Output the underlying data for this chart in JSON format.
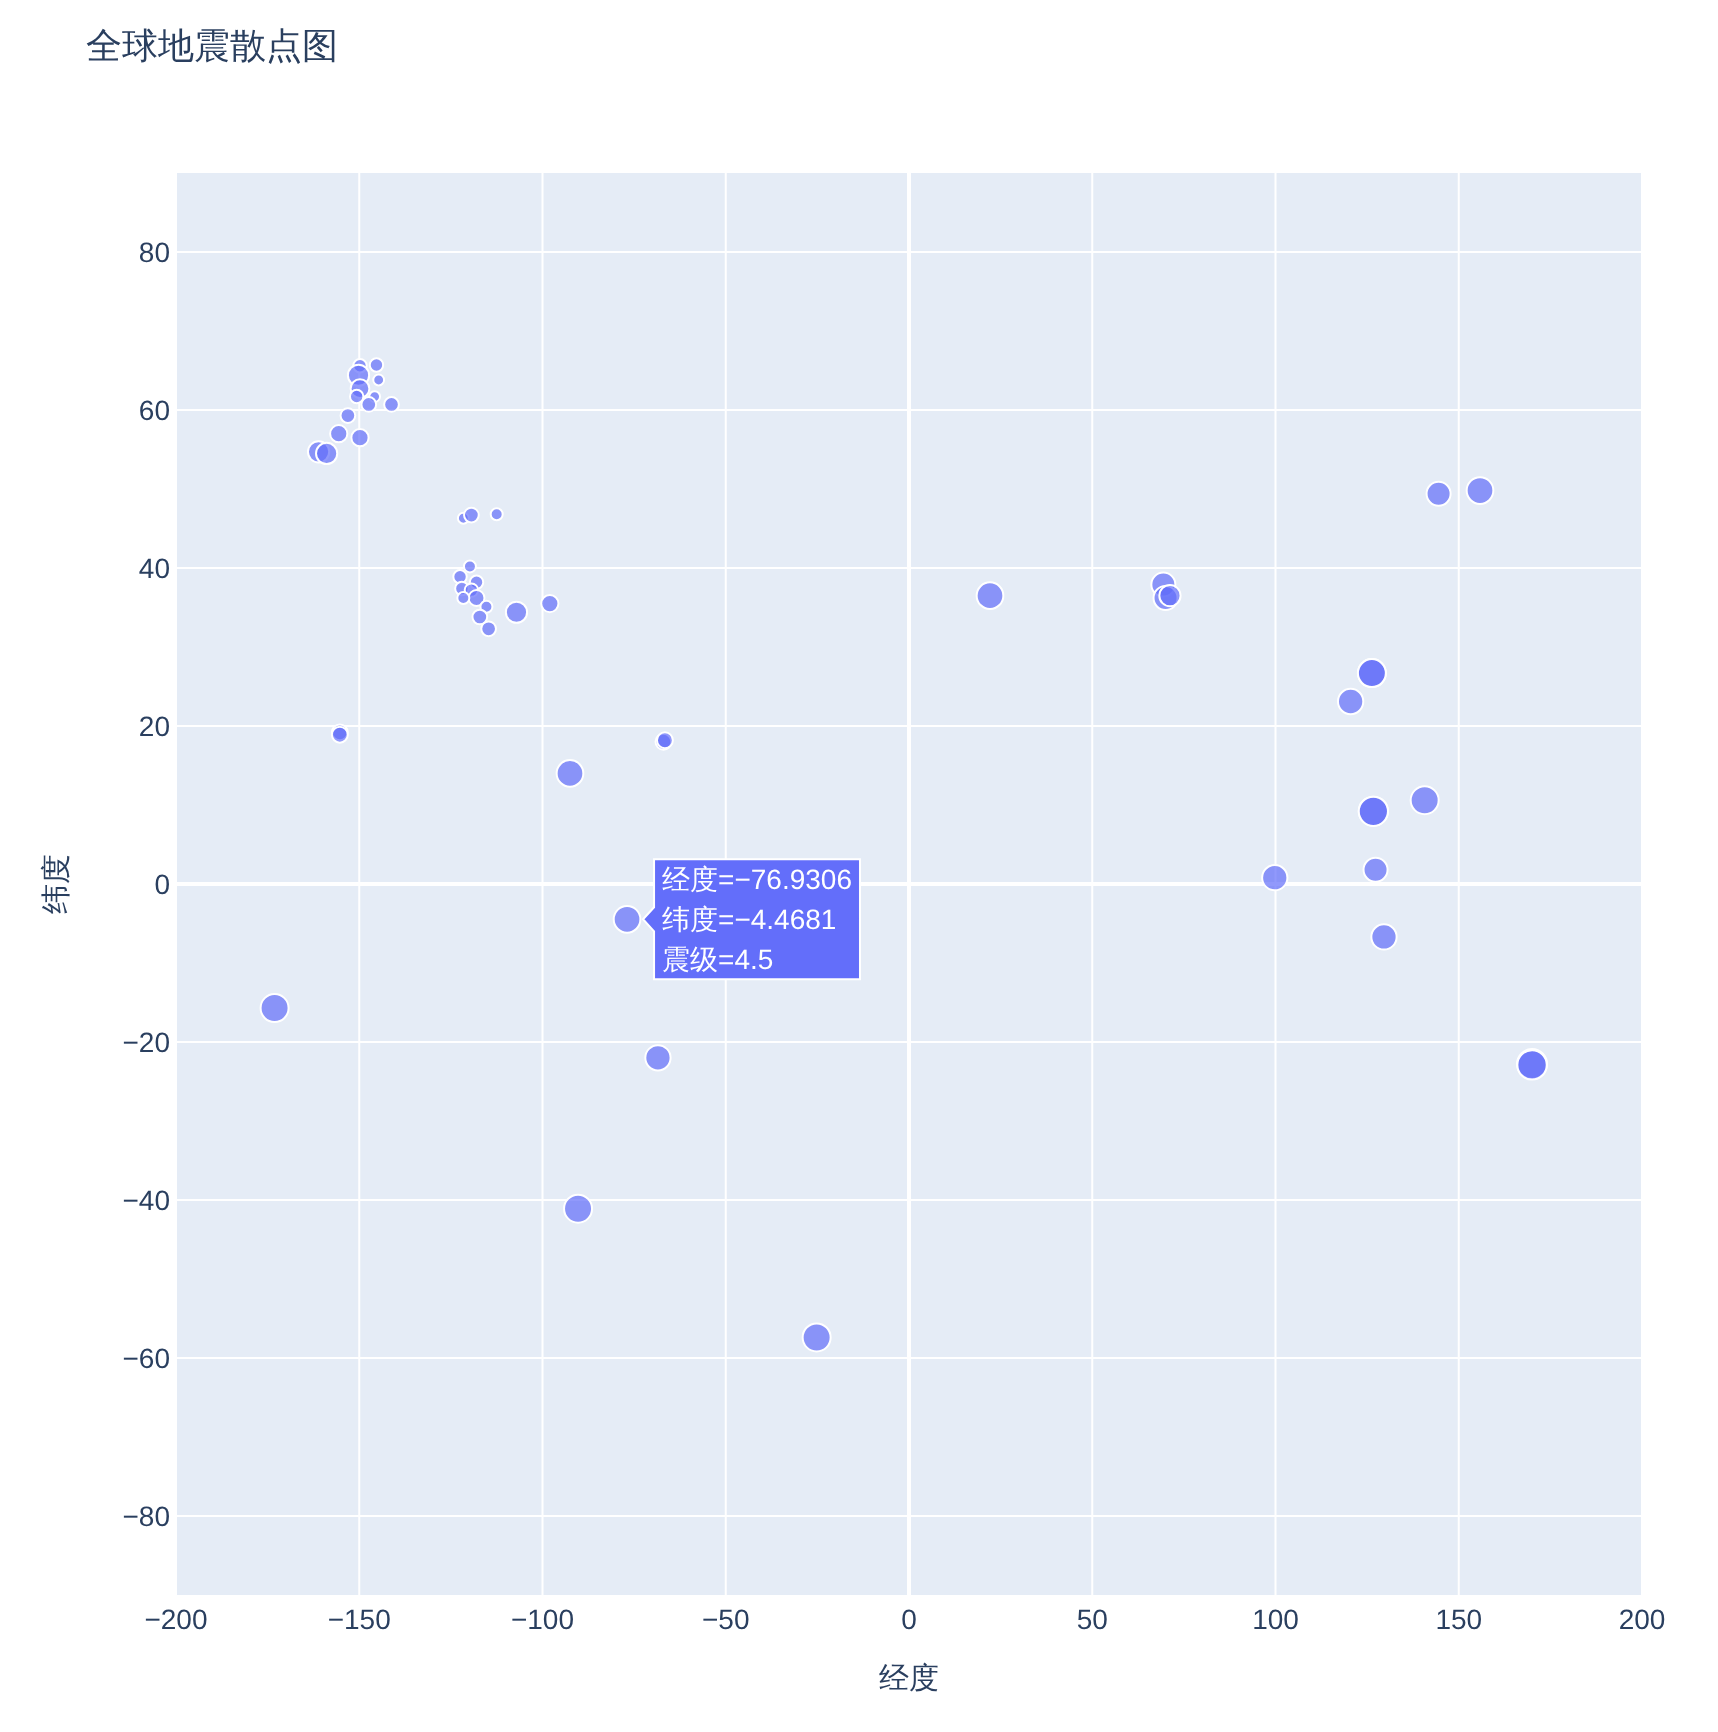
{
  "chart_data": {
    "type": "bubble",
    "title": "全球地震散点图",
    "xlabel": "经度",
    "ylabel": "纬度",
    "xlim": [
      -200,
      200
    ],
    "ylim": [
      -90,
      90
    ],
    "xticks": [
      {
        "value": -200,
        "label": "−200"
      },
      {
        "value": -150,
        "label": "−150"
      },
      {
        "value": -100,
        "label": "−100"
      },
      {
        "value": -50,
        "label": "−50"
      },
      0,
      50,
      100,
      150,
      200
    ],
    "yticks": [
      {
        "value": -80,
        "label": "−80"
      },
      {
        "value": -60,
        "label": "−60"
      },
      {
        "value": -40,
        "label": "−40"
      },
      {
        "value": -20,
        "label": "−20"
      },
      0,
      20,
      40,
      60,
      80
    ],
    "grid": true,
    "marker": "circle",
    "series": [
      {
        "color": "#636efa",
        "x": [
          -149.8,
          -145.3,
          -150.2,
          -144.7,
          -149.8,
          -145.8,
          -150.7,
          -147.4,
          -141.2,
          -153.1,
          -155.6,
          -149.8,
          -161.1,
          -158.9,
          -121.6,
          -119.4,
          -112.5,
          -119.8,
          -122.5,
          -118.0,
          -122.0,
          -119.4,
          -118.0,
          -121.6,
          -115.3,
          -117.1,
          -114.7,
          -107.1,
          -98.0,
          -155.3,
          -155.3,
          -67.0,
          -66.6,
          -92.5,
          -76.9306,
          -173.1,
          -68.5,
          -90.3,
          -25.2,
          22.1,
          144.5,
          155.8,
          69.4,
          70.0,
          71.2,
          126.3,
          126.3,
          120.5,
          140.7,
          126.7,
          126.7,
          99.8,
          127.3,
          129.6,
          170.0,
          170.0
        ],
        "values": [
          65.6,
          65.7,
          64.4,
          63.8,
          62.7,
          61.7,
          61.7,
          60.7,
          60.7,
          59.3,
          57.0,
          56.5,
          54.7,
          54.5,
          46.3,
          46.7,
          46.8,
          40.2,
          38.9,
          38.2,
          37.4,
          37.2,
          36.2,
          36.2,
          35.1,
          33.8,
          32.3,
          34.4,
          35.5,
          19.2,
          18.9,
          18.0,
          18.2,
          14.0,
          -4.4681,
          -15.7,
          -22.0,
          -41.1,
          -57.4,
          36.5,
          49.4,
          49.8,
          37.9,
          36.2,
          36.5,
          26.7,
          26.7,
          23.1,
          10.6,
          9.2,
          9.2,
          0.8,
          1.8,
          -6.7,
          -22.8,
          -22.9
        ],
        "sizes": [
          0.2,
          0.2,
          0.5,
          0.13,
          0.39,
          0.13,
          0.2,
          0.24,
          0.24,
          0.24,
          0.33,
          0.33,
          0.5,
          0.5,
          0.13,
          0.24,
          0.16,
          0.16,
          0.2,
          0.2,
          0.2,
          0.2,
          0.28,
          0.16,
          0.16,
          0.24,
          0.24,
          0.5,
          0.33,
          0.28,
          0.28,
          0.28,
          0.28,
          0.79,
          0.79,
          0.87,
          0.71,
          0.87,
          0.87,
          0.79,
          0.64,
          0.79,
          0.64,
          0.64,
          0.5,
          0.87,
          0.87,
          0.71,
          0.87,
          0.95,
          0.95,
          0.71,
          0.64,
          0.71,
          1.0,
          0.96
        ]
      }
    ],
    "annotations": [
      {
        "text": "经度=−76.9306\n纬度=−4.4681\n震级=4.5",
        "x": -76.9306,
        "y": -4.4681
      }
    ]
  }
}
